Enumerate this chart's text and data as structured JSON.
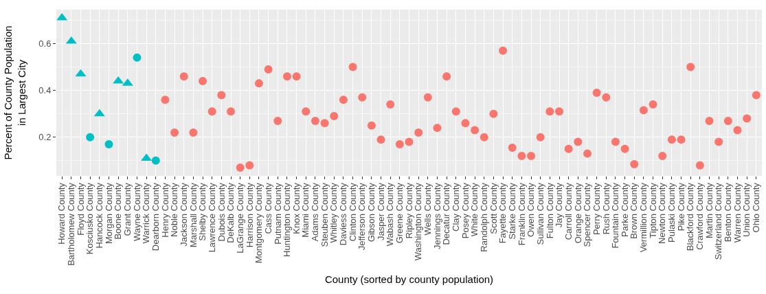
{
  "chart_data": {
    "type": "scatter",
    "xlabel": "County (sorted by county population)",
    "ylabel": "Percent of County Population\nin Largest City",
    "categories": [
      "Howard County",
      "Bartholomew County",
      "Floyd County",
      "Kosciusko County",
      "Hancock County",
      "Morgan County",
      "Boone County",
      "Grant County",
      "Wayne County",
      "Warrick County",
      "Dearborn County",
      "Henry County",
      "Noble County",
      "Jackson County",
      "Marshall County",
      "Shelby County",
      "Lawrence County",
      "Dubois County",
      "DeKalb County",
      "LaGrange County",
      "Harrison County",
      "Montgomery County",
      "Cass County",
      "Putnam County",
      "Huntington County",
      "Knox County",
      "Miami County",
      "Adams County",
      "Steuben County",
      "Whitley County",
      "Daviess County",
      "Clinton County",
      "Jefferson County",
      "Gibson County",
      "Jasper County",
      "Wabash County",
      "Greene County",
      "Ripley County",
      "Washington County",
      "Wells County",
      "Jennings County",
      "Decatur County",
      "Clay County",
      "Posey County",
      "White County",
      "Randolph County",
      "Scott County",
      "Fayette County",
      "Starke County",
      "Franklin County",
      "Owen County",
      "Sullivan County",
      "Fulton County",
      "Jay County",
      "Carroll County",
      "Orange County",
      "Spencer County",
      "Perry County",
      "Rush County",
      "Fountain County",
      "Parke County",
      "Brown County",
      "Vermillion County",
      "Tipton County",
      "Newton County",
      "Pulaski County",
      "Pike County",
      "Blackford County",
      "Crawford County",
      "Martin County",
      "Switzerland County",
      "Benton County",
      "Warren County",
      "Union County",
      "Ohio County"
    ],
    "series": [
      {
        "color": "#00bfc4",
        "marker": "triangle",
        "values": [
          0.71,
          0.61,
          0.47,
          null,
          0.3,
          null,
          0.44,
          0.43,
          null,
          0.11,
          null,
          null,
          null,
          null,
          null,
          null,
          null,
          null,
          null,
          null,
          null,
          null,
          null,
          null,
          null,
          null,
          null,
          null,
          null,
          null,
          null,
          null,
          null,
          null,
          null,
          null,
          null,
          null,
          null,
          null,
          null,
          null,
          null,
          null,
          null,
          null,
          null,
          null,
          null,
          null,
          null,
          null,
          null,
          null,
          null,
          null,
          null,
          null,
          null,
          null,
          null,
          null,
          null,
          null,
          null,
          null,
          null,
          null,
          null,
          null,
          null,
          null,
          null,
          null,
          null
        ]
      },
      {
        "color": "#00bfc4",
        "marker": "circle",
        "values": [
          null,
          null,
          null,
          0.2,
          null,
          0.17,
          null,
          null,
          0.54,
          null,
          0.1,
          null,
          null,
          null,
          null,
          null,
          null,
          null,
          null,
          null,
          null,
          null,
          null,
          null,
          null,
          null,
          null,
          null,
          null,
          null,
          null,
          null,
          null,
          null,
          null,
          null,
          null,
          null,
          null,
          null,
          null,
          null,
          null,
          null,
          null,
          null,
          null,
          null,
          null,
          null,
          null,
          null,
          null,
          null,
          null,
          null,
          null,
          null,
          null,
          null,
          null,
          null,
          null,
          null,
          null,
          null,
          null,
          null,
          null,
          null,
          null,
          null,
          null,
          null,
          null
        ]
      },
      {
        "color": "#f8766d",
        "marker": "circle",
        "values": [
          null,
          null,
          null,
          null,
          null,
          null,
          null,
          null,
          null,
          null,
          null,
          0.36,
          0.22,
          0.46,
          0.22,
          0.44,
          0.31,
          0.38,
          0.31,
          0.07,
          0.08,
          0.43,
          0.49,
          0.27,
          0.46,
          0.46,
          0.31,
          0.27,
          0.26,
          0.29,
          0.36,
          0.5,
          0.37,
          0.25,
          0.19,
          0.34,
          0.17,
          0.18,
          0.22,
          0.37,
          0.24,
          0.46,
          0.31,
          0.26,
          0.23,
          0.2,
          0.3,
          0.57,
          0.155,
          0.12,
          0.12,
          0.2,
          0.31,
          0.31,
          0.15,
          0.18,
          0.13,
          0.39,
          0.37,
          0.18,
          0.15,
          0.085,
          0.315,
          0.34,
          0.12,
          0.19,
          0.19,
          0.5,
          0.08,
          0.27,
          0.18,
          0.27,
          0.23,
          0.28,
          0.38
        ]
      }
    ],
    "ylim": [
      0.035,
      0.745
    ],
    "yticks": [
      0.2,
      0.4,
      0.6
    ],
    "grid": true
  }
}
